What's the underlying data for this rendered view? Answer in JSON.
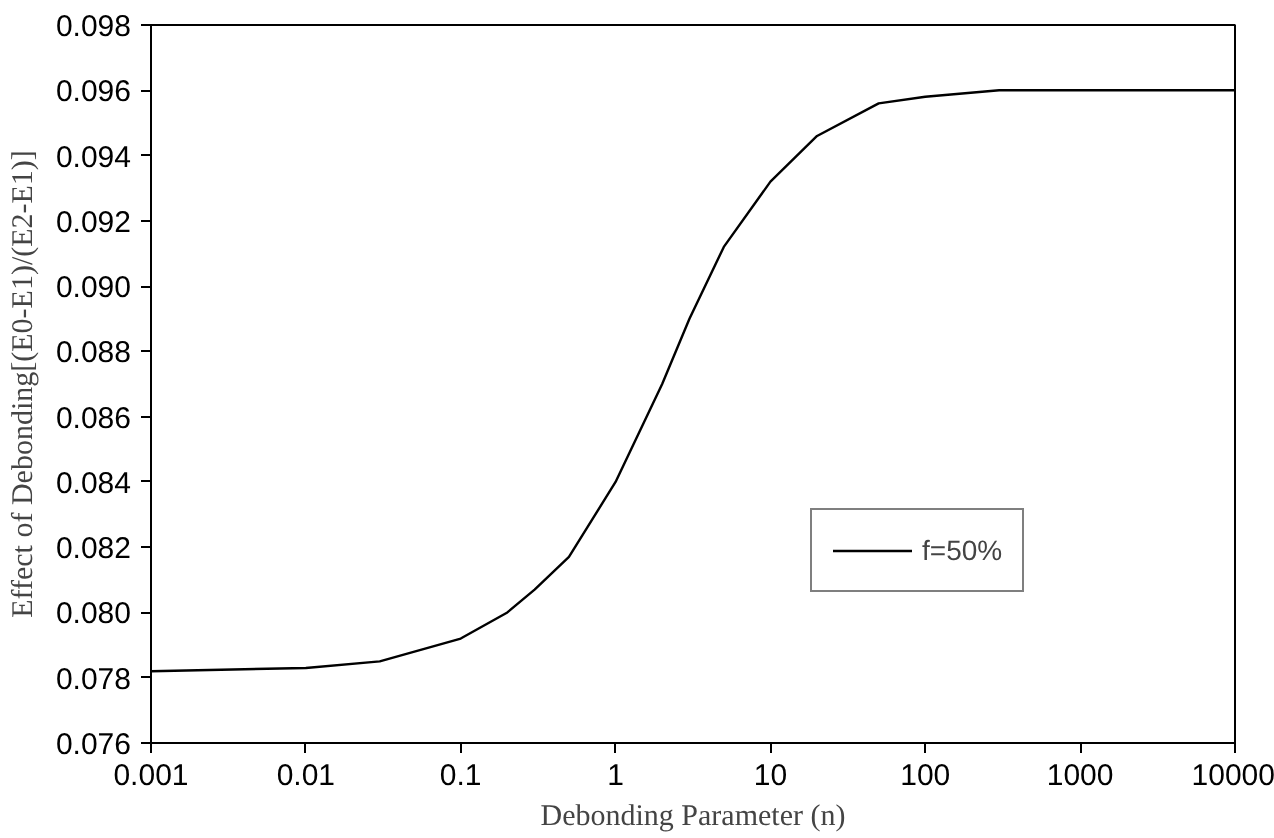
{
  "chart_data": {
    "type": "line",
    "xlabel": "Debonding Parameter (n)",
    "ylabel": "Effect of Debonding[(E0-E1)/(E2-E1)]",
    "log": "x",
    "xlim": [
      0.001,
      10000
    ],
    "xticks": [
      {
        "value": 0.001,
        "label": "0.001"
      },
      {
        "value": 0.01,
        "label": "0.01"
      },
      {
        "value": 0.1,
        "label": "0.1"
      },
      {
        "value": 1,
        "label": "1"
      },
      {
        "value": 10,
        "label": "10"
      },
      {
        "value": 100,
        "label": "100"
      },
      {
        "value": 1000,
        "label": "1000"
      },
      {
        "value": 10000,
        "label": "10000"
      }
    ],
    "ylim": [
      0.076,
      0.098
    ],
    "yticks": [
      {
        "value": 0.076,
        "label": "0.076"
      },
      {
        "value": 0.078,
        "label": "0.078"
      },
      {
        "value": 0.08,
        "label": "0.080"
      },
      {
        "value": 0.082,
        "label": "0.082"
      },
      {
        "value": 0.084,
        "label": "0.084"
      },
      {
        "value": 0.086,
        "label": "0.086"
      },
      {
        "value": 0.088,
        "label": "0.088"
      },
      {
        "value": 0.09,
        "label": "0.090"
      },
      {
        "value": 0.092,
        "label": "0.092"
      },
      {
        "value": 0.094,
        "label": "0.094"
      },
      {
        "value": 0.096,
        "label": "0.096"
      },
      {
        "value": 0.098,
        "label": "0.098"
      }
    ],
    "x": [
      0.001,
      0.01,
      0.03,
      0.1,
      0.2,
      0.3,
      0.5,
      1,
      2,
      3,
      5,
      10,
      20,
      50,
      100,
      300,
      1000,
      10000
    ],
    "series": [
      {
        "name": "f=50%",
        "color": "#000000",
        "values": [
          0.0782,
          0.0783,
          0.0785,
          0.0792,
          0.08,
          0.0807,
          0.0817,
          0.084,
          0.087,
          0.089,
          0.0912,
          0.0932,
          0.0946,
          0.0956,
          0.0958,
          0.096,
          0.096,
          0.096
        ]
      }
    ],
    "grid": false,
    "legend": "right",
    "marker": "none",
    "line_style": "solid"
  }
}
